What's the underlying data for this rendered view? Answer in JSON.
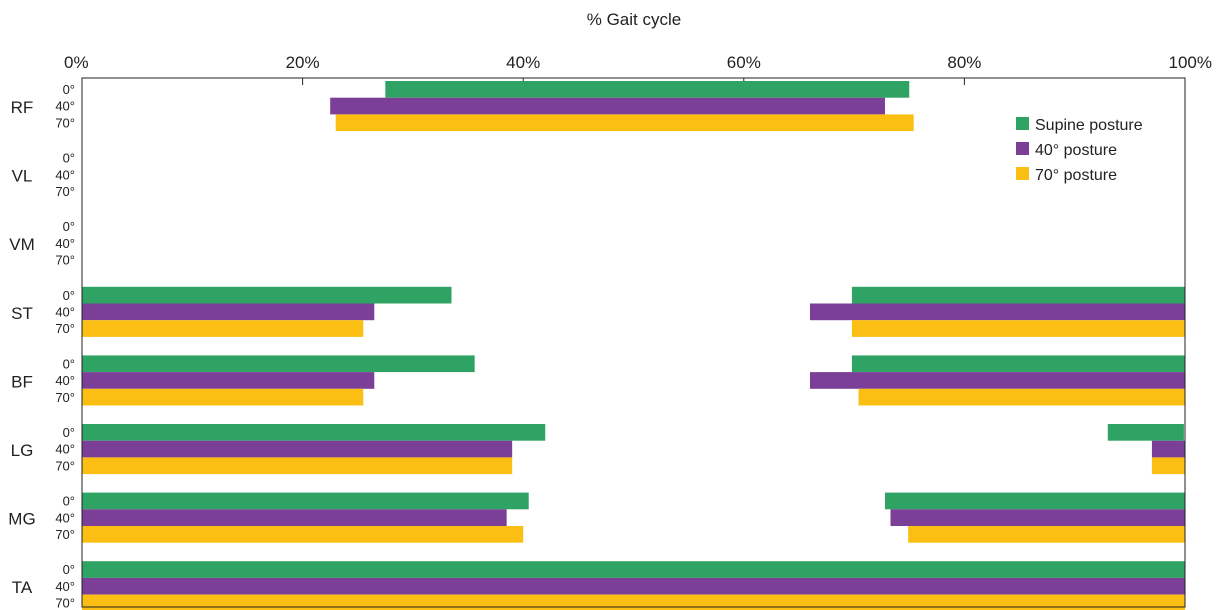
{
  "chart_data": {
    "type": "bar",
    "orientation": "horizontal",
    "subtype": "floating-range",
    "xlabel": "% Gait cycle",
    "xlim": [
      0,
      100
    ],
    "x_ticks": [
      "0%",
      "20%",
      "40%",
      "60%",
      "80%",
      "100%"
    ],
    "x_tick_values": [
      0,
      20,
      40,
      60,
      80,
      100
    ],
    "categories": [
      "RF",
      "VL",
      "VM",
      "ST",
      "BF",
      "LG",
      "MG",
      "TA"
    ],
    "sub_categories": [
      "0°",
      "40°",
      "70°"
    ],
    "legend_position": "top-right",
    "series": [
      {
        "name": "Supine posture",
        "color": "#2ea363",
        "ranges": {
          "RF": [
            [
              27.5,
              75
            ]
          ],
          "VL": [],
          "VM": [],
          "ST": [
            [
              0,
              33.5
            ],
            [
              69.8,
              100
            ]
          ],
          "BF": [
            [
              0,
              35.6
            ],
            [
              69.8,
              100
            ]
          ],
          "LG": [
            [
              0,
              42
            ],
            [
              93,
              99.9
            ]
          ],
          "MG": [
            [
              0,
              40.5
            ],
            [
              72.8,
              100
            ]
          ],
          "TA": [
            [
              0,
              100
            ]
          ]
        }
      },
      {
        "name": "40° posture",
        "color": "#7b3f98",
        "ranges": {
          "RF": [
            [
              22.5,
              72.8
            ]
          ],
          "VL": [],
          "VM": [],
          "ST": [
            [
              0,
              26.5
            ],
            [
              66,
              100
            ]
          ],
          "BF": [
            [
              0,
              26.5
            ],
            [
              66,
              100
            ]
          ],
          "LG": [
            [
              0,
              39
            ],
            [
              97,
              100
            ]
          ],
          "MG": [
            [
              0,
              38.5
            ],
            [
              73.3,
              100
            ]
          ],
          "TA": [
            [
              0,
              100
            ]
          ]
        }
      },
      {
        "name": "70° posture",
        "color": "#fbbf14",
        "ranges": {
          "RF": [
            [
              23,
              75.4
            ]
          ],
          "VL": [],
          "VM": [],
          "ST": [
            [
              0,
              25.5
            ],
            [
              69.8,
              100
            ]
          ],
          "BF": [
            [
              0,
              25.5
            ],
            [
              70.4,
              100
            ]
          ],
          "LG": [
            [
              0,
              39
            ],
            [
              97,
              100
            ]
          ],
          "MG": [
            [
              0,
              40
            ],
            [
              74.9,
              100
            ]
          ],
          "TA": [
            [
              0,
              100
            ]
          ]
        }
      }
    ]
  }
}
